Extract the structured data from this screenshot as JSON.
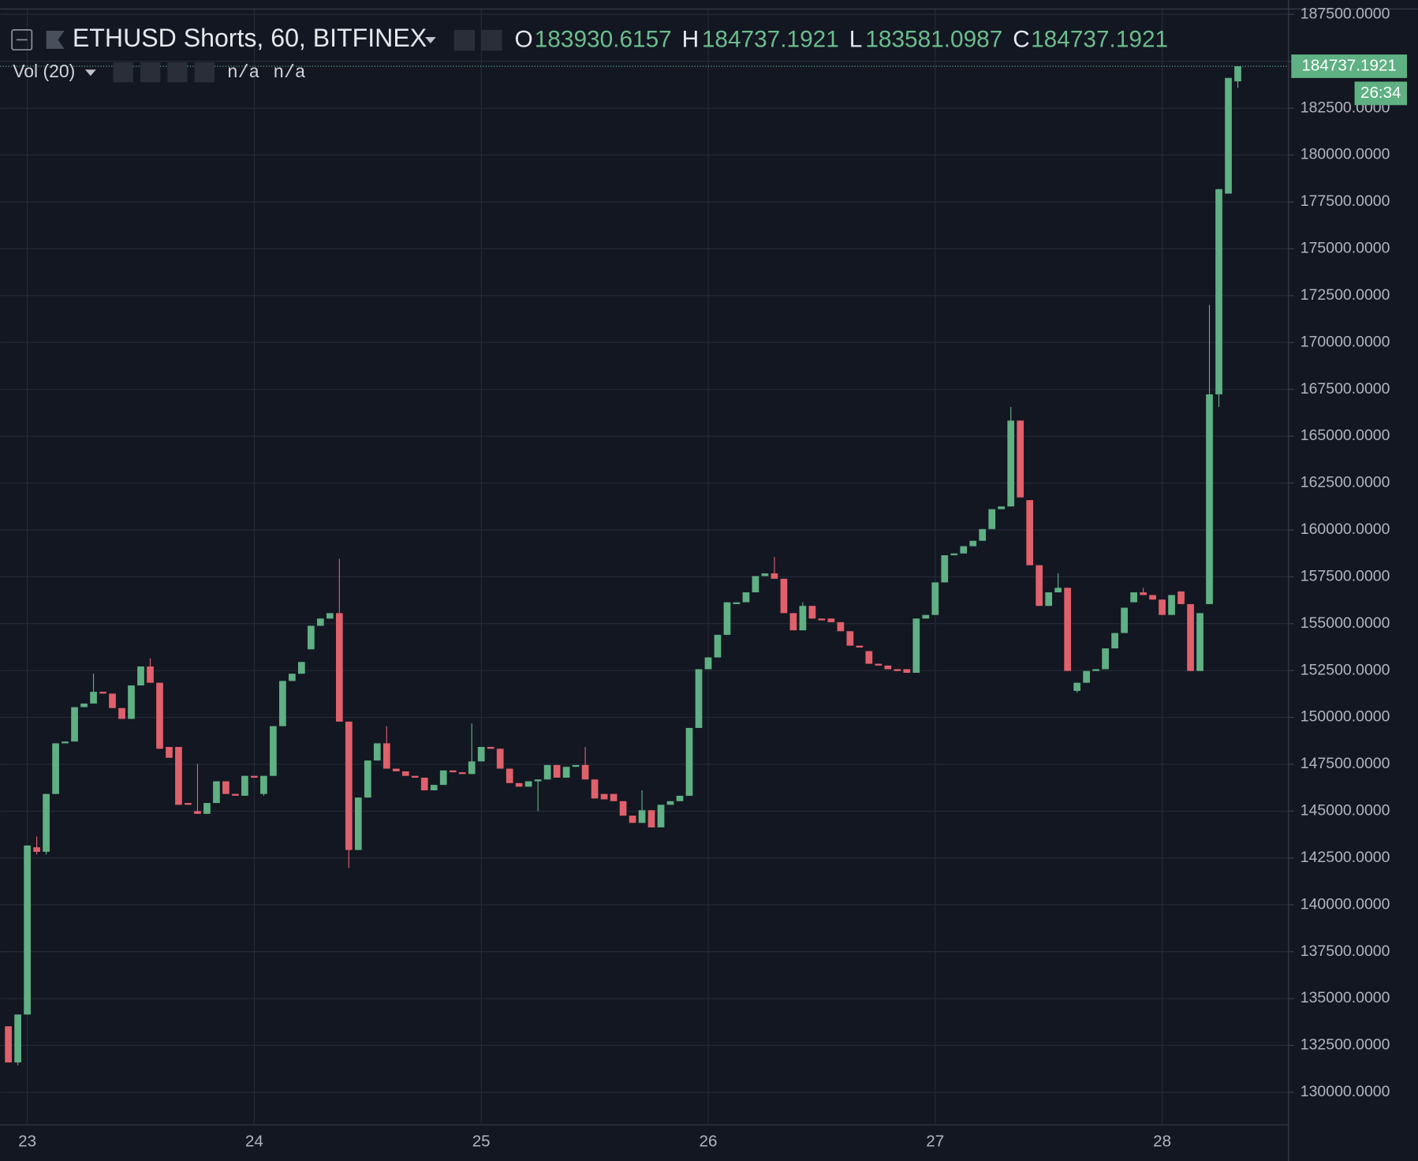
{
  "chart_data": {
    "type": "candlestick",
    "title": "ETHUSD Shorts, 60, BITFINEX",
    "ohlc_labels": [
      "O",
      "H",
      "L",
      "C"
    ],
    "indicator": {
      "name": "Vol (20)",
      "values": [
        "n/a",
        "n/a"
      ]
    },
    "countdown": "26:34",
    "up_color": "#5fb083",
    "down_color": "#e0606b",
    "ylim": [
      128312,
      187789
    ],
    "yticks": [
      {
        "value": 130000,
        "label": "130000.0000"
      },
      {
        "value": 132500,
        "label": "132500.0000"
      },
      {
        "value": 135000,
        "label": "135000.0000"
      },
      {
        "value": 137500,
        "label": "137500.0000"
      },
      {
        "value": 140000,
        "label": "140000.0000"
      },
      {
        "value": 142500,
        "label": "142500.0000"
      },
      {
        "value": 145000,
        "label": "145000.0000"
      },
      {
        "value": 147500,
        "label": "147500.0000"
      },
      {
        "value": 150000,
        "label": "150000.0000"
      },
      {
        "value": 152500,
        "label": "152500.0000"
      },
      {
        "value": 155000,
        "label": "155000.0000"
      },
      {
        "value": 157500,
        "label": "157500.0000"
      },
      {
        "value": 160000,
        "label": "160000.0000"
      },
      {
        "value": 162500,
        "label": "162500.0000"
      },
      {
        "value": 165000,
        "label": "165000.0000"
      },
      {
        "value": 167500,
        "label": "167500.0000"
      },
      {
        "value": 170000,
        "label": "170000.0000"
      },
      {
        "value": 172500,
        "label": "172500.0000"
      },
      {
        "value": 175000,
        "label": "175000.0000"
      },
      {
        "value": 177500,
        "label": "177500.0000"
      },
      {
        "value": 180000,
        "label": "180000.0000"
      },
      {
        "value": 182500,
        "label": "182500.0000"
      },
      {
        "value": 185000,
        "label": "185000.0000"
      },
      {
        "value": 187500,
        "label": "187500.0000"
      }
    ],
    "grid": true,
    "categories": [
      null,
      null,
      "23",
      null,
      null,
      null,
      null,
      null,
      null,
      null,
      null,
      null,
      null,
      null,
      null,
      null,
      null,
      null,
      null,
      null,
      null,
      null,
      null,
      null,
      null,
      null,
      "24",
      null,
      null,
      null,
      null,
      null,
      null,
      null,
      null,
      null,
      null,
      null,
      null,
      null,
      null,
      null,
      null,
      null,
      null,
      null,
      null,
      null,
      null,
      null,
      "25",
      null,
      null,
      null,
      null,
      null,
      null,
      null,
      null,
      null,
      null,
      null,
      null,
      null,
      null,
      null,
      null,
      null,
      null,
      null,
      null,
      null,
      null,
      null,
      "26",
      null,
      null,
      null,
      null,
      null,
      null,
      null,
      null,
      null,
      null,
      null,
      null,
      null,
      null,
      null,
      null,
      null,
      null,
      null,
      null,
      null,
      null,
      null,
      "27",
      null,
      null,
      null,
      null,
      null,
      null,
      null,
      null,
      null,
      null,
      null,
      null,
      null,
      null,
      null,
      null,
      null,
      null,
      null,
      null,
      null,
      null,
      null,
      "28",
      null,
      null,
      null,
      null,
      null,
      null,
      null,
      null
    ],
    "ohlc": [
      [
        133521,
        133521,
        131592,
        131592
      ],
      [
        131592,
        134148,
        131447,
        134148
      ],
      [
        134148,
        143167,
        134148,
        143167
      ],
      [
        143070,
        143649,
        142684,
        142829
      ],
      [
        142829,
        145916,
        142684,
        145916
      ],
      [
        145916,
        148617,
        145916,
        148617
      ],
      [
        148617,
        148713,
        148617,
        148713
      ],
      [
        148713,
        150546,
        148713,
        150546
      ],
      [
        150546,
        150739,
        150546,
        150739
      ],
      [
        150739,
        152330,
        150739,
        151366
      ],
      [
        151366,
        151366,
        151269,
        151269
      ],
      [
        151269,
        151269,
        150498,
        150498
      ],
      [
        150498,
        150498,
        149919,
        149919
      ],
      [
        149919,
        151704,
        149919,
        151704
      ],
      [
        151704,
        152716,
        151704,
        152716
      ],
      [
        152716,
        153150,
        151848,
        151848
      ],
      [
        151848,
        151848,
        148327,
        148327
      ],
      [
        148424,
        148424,
        147845,
        147845
      ],
      [
        148424,
        148424,
        145337,
        145337
      ],
      [
        145434,
        145434,
        145337,
        145337
      ],
      [
        145000,
        147507,
        144855,
        144855
      ],
      [
        144855,
        145434,
        144855,
        145434
      ],
      [
        145434,
        146591,
        145434,
        146591
      ],
      [
        146591,
        146591,
        145916,
        145916
      ],
      [
        145916,
        145916,
        145819,
        145819
      ],
      [
        145819,
        146881,
        145819,
        146881
      ],
      [
        146881,
        146881,
        146784,
        146784
      ],
      [
        145916,
        146881,
        145819,
        146881
      ],
      [
        146881,
        149533,
        146881,
        149533
      ],
      [
        149533,
        151945,
        149533,
        151945
      ],
      [
        151945,
        152330,
        151945,
        152330
      ],
      [
        152330,
        152957,
        152330,
        152957
      ],
      [
        153633,
        154887,
        153633,
        154887
      ],
      [
        154887,
        155273,
        154887,
        155273
      ],
      [
        155273,
        155562,
        155273,
        155562
      ],
      [
        155562,
        158456,
        149774,
        149774
      ],
      [
        149774,
        149774,
        141961,
        142926
      ],
      [
        142926,
        145723,
        142926,
        145723
      ],
      [
        145723,
        147700,
        145723,
        147700
      ],
      [
        147700,
        148617,
        147700,
        148617
      ],
      [
        148617,
        149533,
        147266,
        147266
      ],
      [
        147266,
        147266,
        147122,
        147122
      ],
      [
        147122,
        147122,
        146881,
        146881
      ],
      [
        146881,
        146881,
        146784,
        146784
      ],
      [
        146784,
        146784,
        146109,
        146109
      ],
      [
        146109,
        146398,
        146109,
        146398
      ],
      [
        146398,
        147170,
        146398,
        147170
      ],
      [
        147170,
        147170,
        147073,
        147073
      ],
      [
        147073,
        147073,
        146977,
        146977
      ],
      [
        146977,
        149678,
        146977,
        147652
      ],
      [
        147652,
        148424,
        147652,
        148424
      ],
      [
        148424,
        148424,
        148327,
        148327
      ],
      [
        148327,
        148327,
        147266,
        147266
      ],
      [
        147266,
        147266,
        146495,
        146495
      ],
      [
        146495,
        146495,
        146302,
        146302
      ],
      [
        146302,
        146591,
        146302,
        146591
      ],
      [
        146591,
        146688,
        145000,
        146688
      ],
      [
        146688,
        147459,
        146688,
        147459
      ],
      [
        147459,
        147459,
        146784,
        146784
      ],
      [
        146784,
        147363,
        146784,
        147363
      ],
      [
        147363,
        147459,
        147363,
        147459
      ],
      [
        147459,
        148424,
        146688,
        146688
      ],
      [
        146688,
        146688,
        145675,
        145675
      ],
      [
        145916,
        145916,
        145627,
        145627
      ],
      [
        145916,
        145916,
        145530,
        145530
      ],
      [
        145530,
        145530,
        144758,
        144758
      ],
      [
        144758,
        144758,
        144373,
        144373
      ],
      [
        144373,
        146109,
        144373,
        145048
      ],
      [
        145048,
        145048,
        144131,
        144131
      ],
      [
        144131,
        145337,
        144131,
        145337
      ],
      [
        145337,
        145530,
        145337,
        145530
      ],
      [
        145530,
        145819,
        145530,
        145819
      ],
      [
        145819,
        149437,
        145819,
        149437
      ],
      [
        149437,
        152572,
        149437,
        152572
      ],
      [
        152572,
        153199,
        152572,
        153199
      ],
      [
        153199,
        154404,
        153199,
        154404
      ],
      [
        154404,
        156141,
        154404,
        156141
      ],
      [
        156044,
        156141,
        156044,
        156141
      ],
      [
        156141,
        156671,
        156141,
        156671
      ],
      [
        156671,
        157539,
        156671,
        157539
      ],
      [
        157539,
        157684,
        157539,
        157684
      ],
      [
        157684,
        158552,
        157395,
        157395
      ],
      [
        157395,
        157395,
        155562,
        155562
      ],
      [
        155562,
        155562,
        154646,
        154646
      ],
      [
        154646,
        156141,
        154646,
        155948
      ],
      [
        155948,
        155948,
        155273,
        155273
      ],
      [
        155273,
        155273,
        155176,
        155176
      ],
      [
        155273,
        155273,
        155080,
        155080
      ],
      [
        155080,
        155080,
        154597,
        154597
      ],
      [
        154597,
        154597,
        153826,
        153826
      ],
      [
        153826,
        153826,
        153729,
        153729
      ],
      [
        153536,
        153536,
        152861,
        152861
      ],
      [
        152861,
        152861,
        152765,
        152765
      ],
      [
        152765,
        152765,
        152572,
        152572
      ],
      [
        152572,
        152572,
        152475,
        152475
      ],
      [
        152572,
        152572,
        152379,
        152379
      ],
      [
        152379,
        155273,
        152379,
        155273
      ],
      [
        155273,
        155465,
        155273,
        155465
      ],
      [
        155465,
        157202,
        155465,
        157202
      ],
      [
        157202,
        158649,
        157202,
        158649
      ],
      [
        158649,
        158745,
        158649,
        158745
      ],
      [
        158745,
        159131,
        158745,
        159131
      ],
      [
        159131,
        159420,
        159131,
        159420
      ],
      [
        159420,
        160047,
        159420,
        160047
      ],
      [
        160047,
        161108,
        160047,
        161108
      ],
      [
        161108,
        161253,
        161108,
        161253
      ],
      [
        161253,
        166558,
        161253,
        165835
      ],
      [
        165835,
        165835,
        161735,
        161735
      ],
      [
        161590,
        161590,
        158118,
        158118
      ],
      [
        158118,
        158118,
        155948,
        155948
      ],
      [
        155948,
        156671,
        155948,
        156671
      ],
      [
        156671,
        157684,
        156671,
        156912
      ],
      [
        156912,
        156912,
        152475,
        152475
      ],
      [
        151414,
        151848,
        151318,
        151848
      ],
      [
        151848,
        152475,
        151848,
        152475
      ],
      [
        152475,
        152572,
        152475,
        152572
      ],
      [
        152572,
        153681,
        152572,
        153681
      ],
      [
        153681,
        154501,
        153681,
        154501
      ],
      [
        154501,
        155851,
        154501,
        155851
      ],
      [
        156141,
        156671,
        156141,
        156671
      ],
      [
        156671,
        156912,
        156527,
        156527
      ],
      [
        156527,
        156527,
        156285,
        156285
      ],
      [
        156285,
        156285,
        155465,
        155465
      ],
      [
        155465,
        156527,
        155465,
        156527
      ],
      [
        156719,
        156719,
        156044,
        156044
      ],
      [
        156044,
        156044,
        152475,
        152475
      ],
      [
        152475,
        155562,
        152475,
        155562
      ],
      [
        156044,
        172008,
        156044,
        167234
      ],
      [
        167234,
        178182,
        166558,
        178182
      ],
      [
        177941,
        184114,
        177941,
        184114
      ],
      [
        183930.6157,
        184737.1921,
        183581.0987,
        184737.1921
      ]
    ]
  }
}
